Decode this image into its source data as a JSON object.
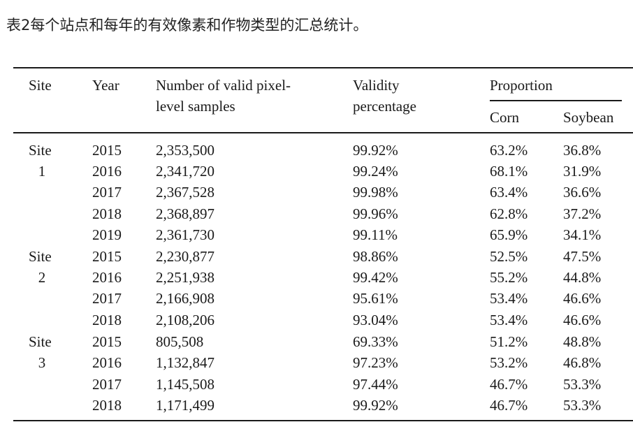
{
  "caption": "表2每个站点和每年的有效像素和作物类型的汇总统计。",
  "headers": {
    "site": "Site",
    "year": "Year",
    "num_line1": "Number of valid pixel-",
    "num_line2": "level samples",
    "valid_line1": "Validity",
    "valid_line2": "percentage",
    "proportion": "Proportion",
    "corn": "Corn",
    "soybean": "Soybean"
  },
  "site_labels": [
    {
      "word": "Site",
      "num": "1"
    },
    {
      "word": "Site",
      "num": "2"
    },
    {
      "word": "Site",
      "num": "3"
    }
  ],
  "rows": [
    {
      "year": "2015",
      "samples": "2,353,500",
      "validity": "99.92%",
      "corn": "63.2%",
      "soybean": "36.8%"
    },
    {
      "year": "2016",
      "samples": "2,341,720",
      "validity": "99.24%",
      "corn": "68.1%",
      "soybean": "31.9%"
    },
    {
      "year": "2017",
      "samples": "2,367,528",
      "validity": "99.98%",
      "corn": "63.4%",
      "soybean": "36.6%"
    },
    {
      "year": "2018",
      "samples": "2,368,897",
      "validity": "99.96%",
      "corn": "62.8%",
      "soybean": "37.2%"
    },
    {
      "year": "2019",
      "samples": "2,361,730",
      "validity": "99.11%",
      "corn": "65.9%",
      "soybean": "34.1%"
    },
    {
      "year": "2015",
      "samples": "2,230,877",
      "validity": "98.86%",
      "corn": "52.5%",
      "soybean": "47.5%"
    },
    {
      "year": "2016",
      "samples": "2,251,938",
      "validity": "99.42%",
      "corn": "55.2%",
      "soybean": "44.8%"
    },
    {
      "year": "2017",
      "samples": "2,166,908",
      "validity": "95.61%",
      "corn": "53.4%",
      "soybean": "46.6%"
    },
    {
      "year": "2018",
      "samples": "2,108,206",
      "validity": "93.04%",
      "corn": "53.4%",
      "soybean": "46.6%"
    },
    {
      "year": "2015",
      "samples": "805,508",
      "validity": "69.33%",
      "corn": "51.2%",
      "soybean": "48.8%"
    },
    {
      "year": "2016",
      "samples": "1,132,847",
      "validity": "97.23%",
      "corn": "53.2%",
      "soybean": "46.8%"
    },
    {
      "year": "2017",
      "samples": "1,145,508",
      "validity": "97.44%",
      "corn": "46.7%",
      "soybean": "53.3%"
    },
    {
      "year": "2018",
      "samples": "1,171,499",
      "validity": "99.92%",
      "corn": "46.7%",
      "soybean": "53.3%"
    }
  ]
}
